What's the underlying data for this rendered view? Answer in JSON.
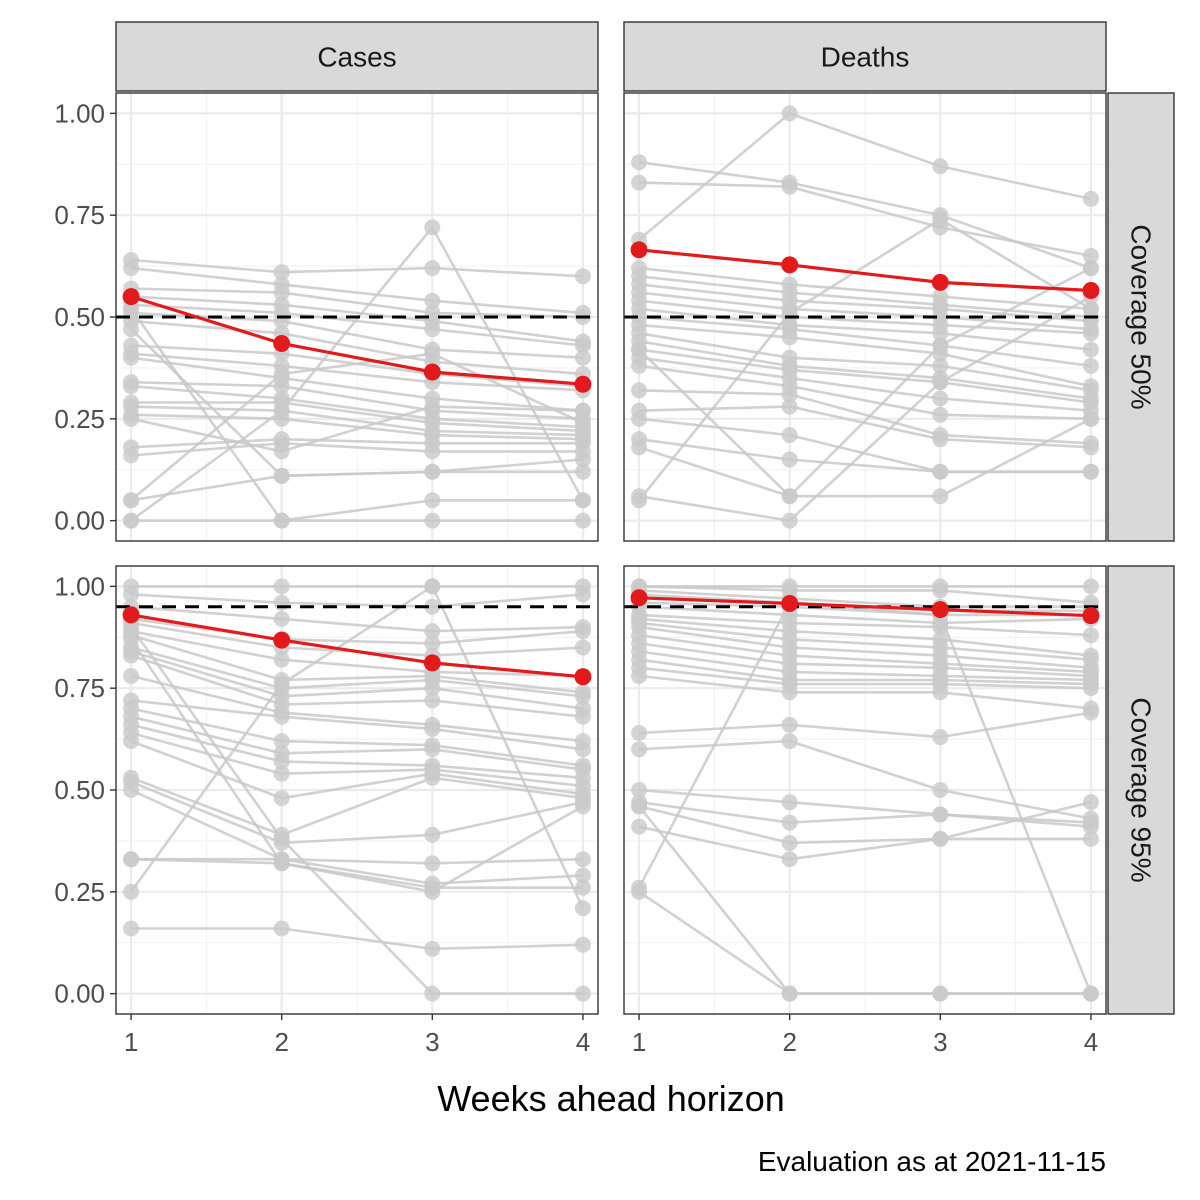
{
  "chart_data": {
    "type": "line",
    "xlabel": "Weeks ahead horizon",
    "ylabel": "",
    "caption": "Evaluation as at 2021-11-15",
    "x": [
      1,
      2,
      3,
      4
    ],
    "xlim": [
      0.9,
      4.1
    ],
    "ylim": [
      -0.05,
      1.05
    ],
    "x_ticks": [
      "1",
      "2",
      "3",
      "4"
    ],
    "y_ticks": [
      "0.00",
      "0.25",
      "0.50",
      "0.75",
      "1.00"
    ],
    "grid": true,
    "colors": {
      "models": "#c9c9c9",
      "ensemble": "#e31a1c",
      "reference": "#000000"
    },
    "facet_columns": [
      "Cases",
      "Deaths"
    ],
    "facet_rows": [
      "Coverage 50%",
      "Coverage 95%"
    ],
    "panels": [
      {
        "column": "Cases",
        "row": "Coverage 50%",
        "reference": 0.5,
        "ensemble": [
          0.55,
          0.435,
          0.365,
          0.335
        ],
        "models": [
          [
            0.64,
            0.61,
            0.62,
            0.6
          ],
          [
            0.62,
            0.58,
            0.54,
            0.51
          ],
          [
            0.57,
            0.56,
            0.51,
            0.5
          ],
          [
            0.55,
            0.53,
            0.49,
            0.44
          ],
          [
            0.53,
            0.51,
            0.47,
            0.43
          ],
          [
            0.51,
            0.49,
            0.42,
            0.4
          ],
          [
            0.49,
            0.46,
            0.39,
            0.36
          ],
          [
            0.43,
            0.41,
            0.36,
            0.33
          ],
          [
            0.41,
            0.38,
            0.34,
            0.32
          ],
          [
            0.4,
            0.35,
            0.3,
            0.27
          ],
          [
            0.34,
            0.33,
            0.27,
            0.25
          ],
          [
            0.33,
            0.3,
            0.25,
            0.23
          ],
          [
            0.29,
            0.29,
            0.24,
            0.22
          ],
          [
            0.28,
            0.27,
            0.22,
            0.21
          ],
          [
            0.26,
            0.25,
            0.21,
            0.2
          ],
          [
            0.18,
            0.2,
            0.19,
            0.19
          ],
          [
            0.16,
            0.19,
            0.17,
            0.17
          ],
          [
            0.05,
            0.11,
            0.12,
            0.12
          ],
          [
            0.0,
            0.0,
            0.0,
            0.0
          ],
          [
            0.0,
            0.27,
            0.72,
            0.05
          ],
          [
            0.52,
            0.0,
            0.05,
            0.05
          ],
          [
            0.47,
            0.11,
            0.12,
            0.15
          ],
          [
            0.05,
            0.36,
            0.41,
            0.24
          ],
          [
            0.25,
            0.17,
            0.28,
            0.27
          ]
        ]
      },
      {
        "column": "Deaths",
        "row": "Coverage 50%",
        "reference": 0.5,
        "ensemble": [
          0.665,
          0.628,
          0.585,
          0.565
        ],
        "models": [
          [
            0.88,
            0.83,
            0.75,
            0.62
          ],
          [
            0.83,
            0.82,
            0.72,
            0.65
          ],
          [
            0.69,
            1.0,
            0.87,
            0.79
          ],
          [
            0.62,
            0.58,
            0.55,
            0.52
          ],
          [
            0.6,
            0.56,
            0.53,
            0.5
          ],
          [
            0.58,
            0.54,
            0.52,
            0.49
          ],
          [
            0.56,
            0.52,
            0.5,
            0.47
          ],
          [
            0.54,
            0.5,
            0.48,
            0.46
          ],
          [
            0.52,
            0.48,
            0.46,
            0.42
          ],
          [
            0.5,
            0.47,
            0.43,
            0.38
          ],
          [
            0.48,
            0.45,
            0.41,
            0.33
          ],
          [
            0.46,
            0.4,
            0.38,
            0.32
          ],
          [
            0.44,
            0.38,
            0.35,
            0.3
          ],
          [
            0.42,
            0.37,
            0.34,
            0.29
          ],
          [
            0.4,
            0.35,
            0.3,
            0.27
          ],
          [
            0.38,
            0.33,
            0.26,
            0.25
          ],
          [
            0.32,
            0.31,
            0.21,
            0.19
          ],
          [
            0.27,
            0.28,
            0.2,
            0.18
          ],
          [
            0.25,
            0.21,
            0.12,
            0.12
          ],
          [
            0.2,
            0.15,
            0.12,
            0.12
          ],
          [
            0.18,
            0.06,
            0.06,
            0.25
          ],
          [
            0.06,
            0.0,
            0.34,
            0.55
          ],
          [
            0.05,
            0.51,
            0.74,
            0.52
          ],
          [
            0.42,
            0.06,
            0.43,
            0.62
          ]
        ]
      },
      {
        "column": "Cases",
        "row": "Coverage 95%",
        "reference": 0.95,
        "ensemble": [
          0.93,
          0.868,
          0.812,
          0.778
        ],
        "models": [
          [
            1.0,
            1.0,
            1.0,
            1.0
          ],
          [
            0.98,
            0.96,
            0.95,
            0.98
          ],
          [
            0.95,
            0.92,
            0.89,
            0.9
          ],
          [
            0.92,
            0.87,
            0.86,
            0.89
          ],
          [
            0.91,
            0.85,
            0.83,
            0.85
          ],
          [
            0.89,
            0.82,
            0.79,
            0.78
          ],
          [
            0.88,
            0.77,
            0.78,
            0.74
          ],
          [
            0.85,
            0.75,
            0.77,
            0.73
          ],
          [
            0.84,
            0.73,
            0.75,
            0.7
          ],
          [
            0.83,
            0.71,
            0.72,
            0.68
          ],
          [
            0.78,
            0.69,
            0.66,
            0.62
          ],
          [
            0.72,
            0.68,
            0.65,
            0.6
          ],
          [
            0.7,
            0.62,
            0.61,
            0.56
          ],
          [
            0.68,
            0.59,
            0.6,
            0.55
          ],
          [
            0.66,
            0.57,
            0.56,
            0.53
          ],
          [
            0.64,
            0.54,
            0.55,
            0.51
          ],
          [
            0.62,
            0.48,
            0.54,
            0.49
          ],
          [
            0.53,
            0.39,
            0.53,
            0.48
          ],
          [
            0.52,
            0.37,
            0.39,
            0.47
          ],
          [
            0.5,
            0.33,
            0.32,
            0.33
          ],
          [
            0.33,
            0.33,
            0.27,
            0.29
          ],
          [
            0.33,
            0.32,
            0.26,
            0.26
          ],
          [
            0.25,
            0.76,
            1.0,
            0.21
          ],
          [
            0.16,
            0.16,
            0.11,
            0.12
          ],
          [
            0.9,
            0.38,
            0.0,
            0.0
          ],
          [
            0.87,
            0.32,
            0.25,
            0.46
          ]
        ]
      },
      {
        "column": "Deaths",
        "row": "Coverage 95%",
        "reference": 0.95,
        "ensemble": [
          0.972,
          0.958,
          0.943,
          0.928
        ],
        "models": [
          [
            1.0,
            1.0,
            1.0,
            1.0
          ],
          [
            1.0,
            0.99,
            0.99,
            0.96
          ],
          [
            0.99,
            0.97,
            0.95,
            0.95
          ],
          [
            0.98,
            0.96,
            0.94,
            0.94
          ],
          [
            0.96,
            0.95,
            0.93,
            0.93
          ],
          [
            0.95,
            0.93,
            0.91,
            0.92
          ],
          [
            0.93,
            0.91,
            0.9,
            0.88
          ],
          [
            0.92,
            0.89,
            0.87,
            0.83
          ],
          [
            0.91,
            0.87,
            0.85,
            0.82
          ],
          [
            0.9,
            0.85,
            0.83,
            0.8
          ],
          [
            0.88,
            0.83,
            0.81,
            0.79
          ],
          [
            0.86,
            0.81,
            0.8,
            0.78
          ],
          [
            0.84,
            0.79,
            0.78,
            0.77
          ],
          [
            0.82,
            0.77,
            0.77,
            0.76
          ],
          [
            0.8,
            0.76,
            0.76,
            0.75
          ],
          [
            0.78,
            0.74,
            0.74,
            0.7
          ],
          [
            0.64,
            0.66,
            0.63,
            0.69
          ],
          [
            0.6,
            0.62,
            0.5,
            0.43
          ],
          [
            0.5,
            0.47,
            0.44,
            0.42
          ],
          [
            0.47,
            0.42,
            0.44,
            0.41
          ],
          [
            0.46,
            0.37,
            0.38,
            0.38
          ],
          [
            0.41,
            0.33,
            0.38,
            0.47
          ],
          [
            0.26,
            0.96,
            0.93,
            0.0
          ],
          [
            0.25,
            0.0,
            0.0,
            0.0
          ],
          [
            0.46,
            0.0,
            0.0,
            0.0
          ]
        ]
      }
    ]
  }
}
